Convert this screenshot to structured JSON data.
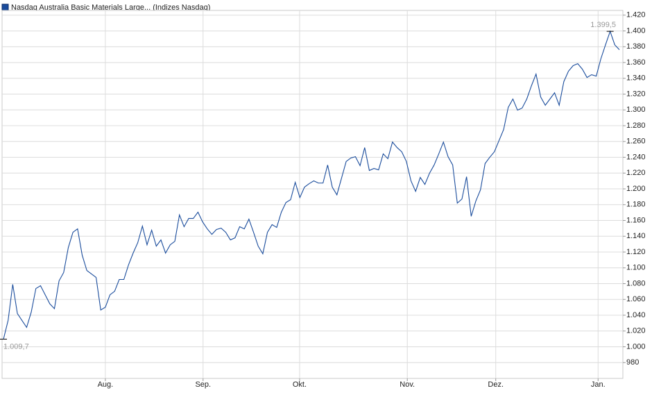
{
  "chart_data": {
    "type": "line",
    "series": [
      {
        "name": "Nasdaq Australia Basic Materials Large... (Indizes Nasdaq)",
        "color": "#1a4c9c",
        "values": [
          1009.7,
          1033.4,
          1079.1,
          1042.2,
          1033.4,
          1024.6,
          1044.0,
          1073.8,
          1077.4,
          1065.9,
          1054.5,
          1048.3,
          1083.5,
          1094.1,
          1125.7,
          1145.0,
          1149.4,
          1116.0,
          1096.7,
          1092.3,
          1087.9,
          1046.6,
          1050.1,
          1065.9,
          1070.3,
          1085.3,
          1085.3,
          1103.7,
          1118.7,
          1131.9,
          1152.9,
          1129.2,
          1147.7,
          1127.5,
          1135.4,
          1118.7,
          1129.2,
          1133.6,
          1167.0,
          1152.1,
          1162.6,
          1162.6,
          1170.5,
          1158.2,
          1149.4,
          1142.4,
          1148.6,
          1150.3,
          1145.0,
          1135.4,
          1138.0,
          1152.1,
          1149.4,
          1161.7,
          1145.0,
          1127.5,
          1117.8,
          1145.0,
          1154.7,
          1151.2,
          1170.5,
          1182.8,
          1186.3,
          1208.3,
          1189.0,
          1202.2,
          1206.6,
          1210.1,
          1207.4,
          1207.4,
          1230.3,
          1202.2,
          1192.5,
          1213.6,
          1234.7,
          1239.1,
          1240.8,
          1229.4,
          1252.3,
          1223.3,
          1225.9,
          1224.1,
          1244.4,
          1238.2,
          1259.3,
          1252.3,
          1247.0,
          1234.7,
          1210.1,
          1196.9,
          1214.5,
          1205.7,
          1219.8,
          1230.3,
          1244.4,
          1259.3,
          1240.8,
          1230.3,
          1182.0,
          1187.2,
          1215.4,
          1165.3,
          1184.6,
          1198.7,
          1232.1,
          1240.0,
          1247.0,
          1261.1,
          1275.1,
          1303.3,
          1313.8,
          1299.7,
          1302.4,
          1313.8,
          1330.5,
          1345.4,
          1316.4,
          1305.9,
          1313.8,
          1321.7,
          1305.9,
          1335.8,
          1349.0,
          1356.0,
          1358.6,
          1351.6,
          1341.1,
          1344.6,
          1342.8,
          1364.8,
          1382.4,
          1399.5,
          1382.4,
          1376.2
        ]
      }
    ],
    "xlim": [
      -0.3,
      133.75
    ],
    "xticks": [
      {
        "value": 22.0,
        "label": "Aug."
      },
      {
        "value": 43.1,
        "label": "Sep."
      },
      {
        "value": 63.95,
        "label": "Okt."
      },
      {
        "value": 87.2,
        "label": "Nov."
      },
      {
        "value": 106.3,
        "label": "Dez."
      },
      {
        "value": 128.4,
        "label": "Jan."
      }
    ],
    "ylim": [
      960,
      1426
    ],
    "yticks": [
      980,
      {
        "value": 1000,
        "label": "1.000"
      },
      {
        "value": 1020,
        "label": "1.020"
      },
      {
        "value": 1040,
        "label": "1.040"
      },
      {
        "value": 1060,
        "label": "1.060"
      },
      {
        "value": 1080,
        "label": "1.080"
      },
      {
        "value": 1100,
        "label": "1.100"
      },
      {
        "value": 1120,
        "label": "1.120"
      },
      {
        "value": 1140,
        "label": "1.140"
      },
      {
        "value": 1160,
        "label": "1.160"
      },
      {
        "value": 1180,
        "label": "1.180"
      },
      {
        "value": 1200,
        "label": "1.200"
      },
      {
        "value": 1220,
        "label": "1.220"
      },
      {
        "value": 1240,
        "label": "1.240"
      },
      {
        "value": 1260,
        "label": "1.260"
      },
      {
        "value": 1280,
        "label": "1.280"
      },
      {
        "value": 1300,
        "label": "1.300"
      },
      {
        "value": 1320,
        "label": "1.320"
      },
      {
        "value": 1340,
        "label": "1.340"
      },
      {
        "value": 1360,
        "label": "1.360"
      },
      {
        "value": 1380,
        "label": "1.380"
      },
      {
        "value": 1400,
        "label": "1.400"
      },
      {
        "value": 1420,
        "label": "1.420"
      }
    ],
    "annotations": [
      {
        "x": 0,
        "value": 1009.7,
        "label": "1.009,7"
      },
      {
        "x": 131,
        "value": 1399.5,
        "label": "1.399,5"
      }
    ],
    "grid": true
  }
}
